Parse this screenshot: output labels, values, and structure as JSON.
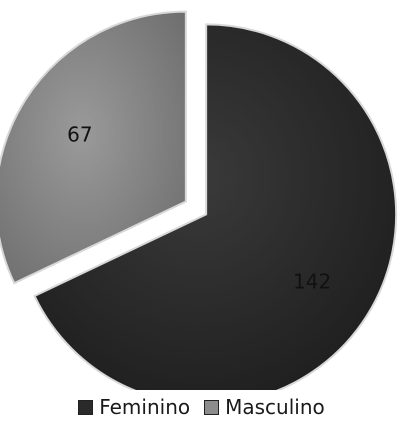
{
  "chart_data": {
    "type": "pie",
    "categories": [
      "Feminino",
      "Masculino"
    ],
    "values": [
      142,
      67
    ],
    "colors": [
      "#2a2a2a",
      "#8c8c8c"
    ],
    "exploded": true,
    "legend_position": "bottom",
    "data_labels": [
      "142",
      "67"
    ]
  }
}
